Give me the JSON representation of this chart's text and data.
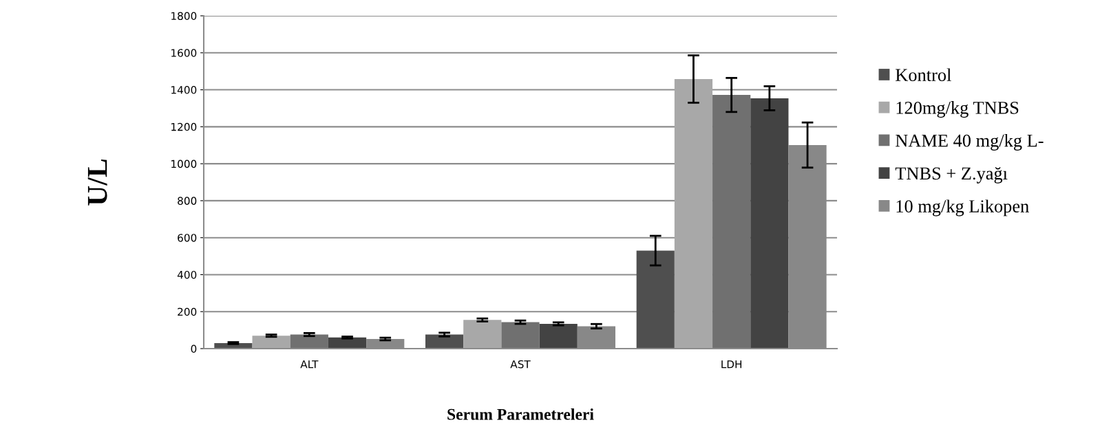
{
  "chart_data": {
    "type": "bar",
    "xlabel": "Serum Parametreleri",
    "ylabel": "U/L",
    "categories": [
      "ALT",
      "AST",
      "LDH"
    ],
    "series": [
      {
        "name": "Kontrol",
        "color": "#4f4f4f",
        "values": [
          30,
          76,
          530
        ],
        "errors": [
          5,
          10,
          80
        ]
      },
      {
        "name": "120mg/kg TNBS",
        "color": "#a8a8a8",
        "values": [
          70,
          155,
          1458
        ],
        "errors": [
          6,
          8,
          128
        ]
      },
      {
        "name": "NAME 40 mg/kg L-",
        "color": "#707070",
        "values": [
          76,
          143,
          1372
        ],
        "errors": [
          8,
          9,
          92
        ]
      },
      {
        "name": "TNBS + Z.yağı",
        "color": "#434343",
        "values": [
          60,
          134,
          1354
        ],
        "errors": [
          5,
          8,
          65
        ]
      },
      {
        "name": "10 mg/kg Likopen",
        "color": "#888888",
        "values": [
          52,
          121,
          1101
        ],
        "errors": [
          7,
          12,
          122
        ]
      }
    ],
    "ylim": [
      0,
      1800
    ],
    "yticks": [
      0,
      200,
      400,
      600,
      800,
      1000,
      1200,
      1400,
      1600,
      1800
    ],
    "grid": "y",
    "legend": "right"
  }
}
